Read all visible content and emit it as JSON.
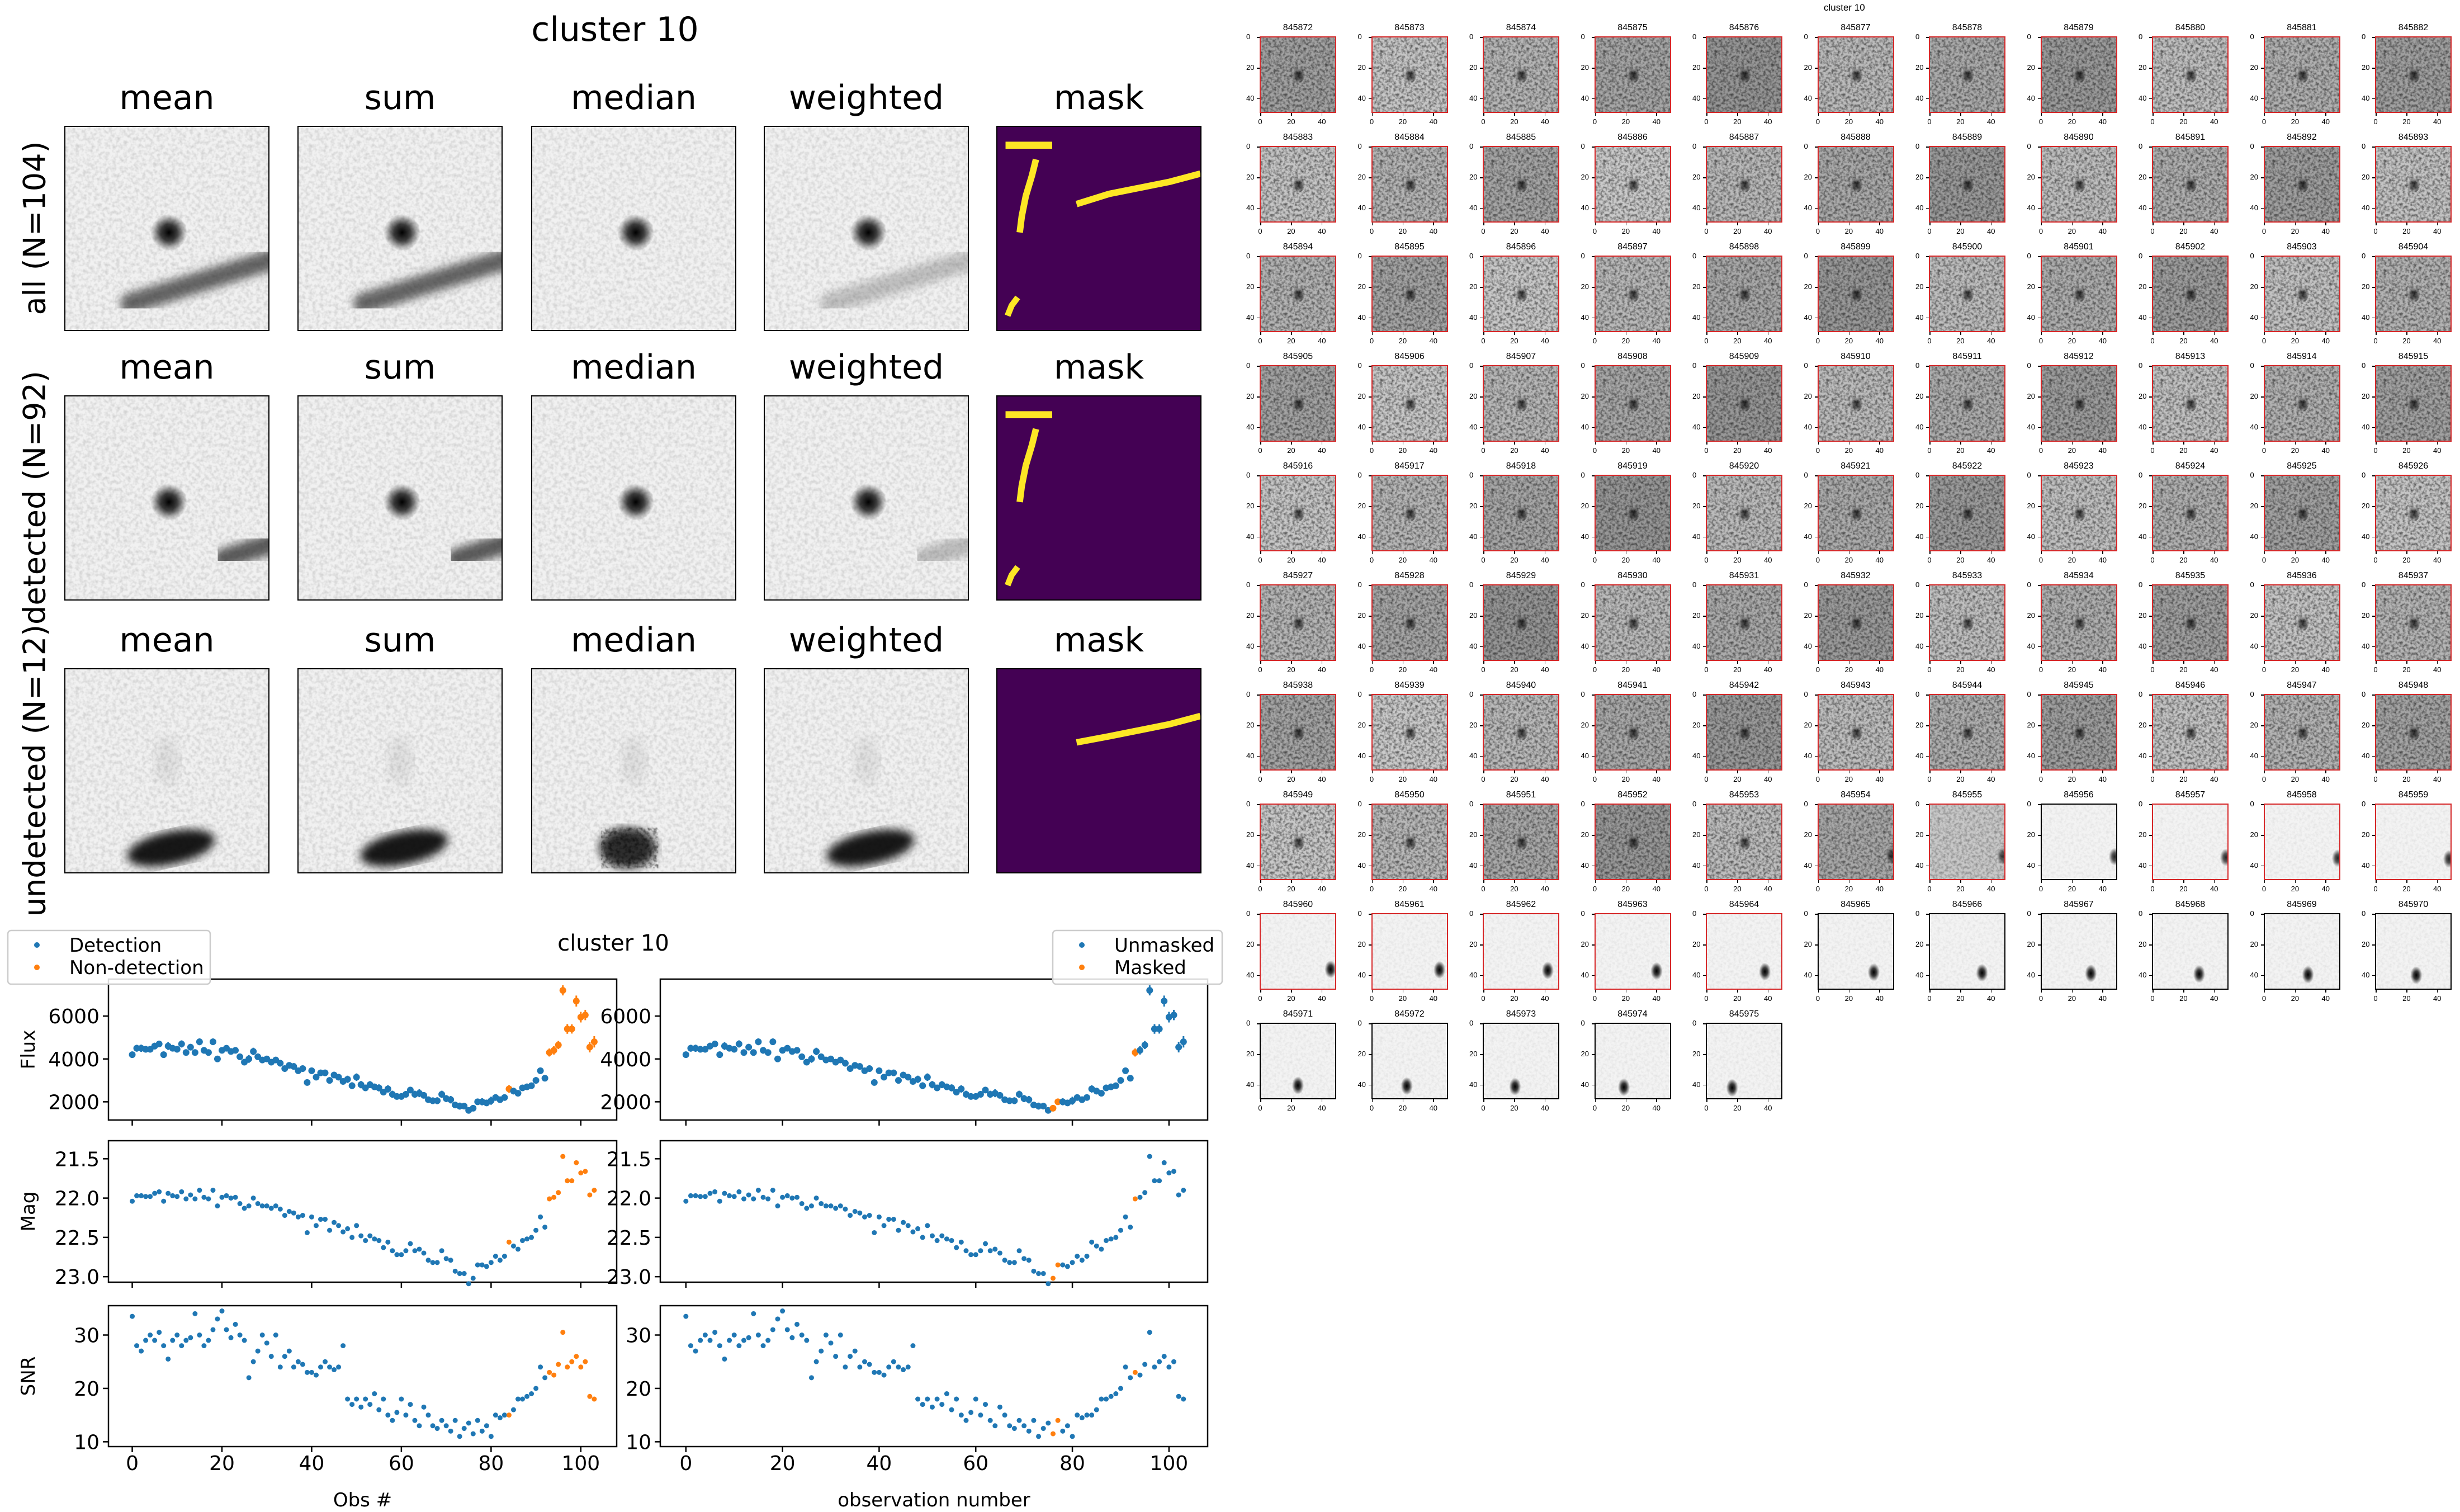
{
  "figure": {
    "stack_title": "cluster 10",
    "lightcurve_title": "cluster 10",
    "grid_title": "cluster 10"
  },
  "stack": {
    "columns": [
      "mean",
      "sum",
      "median",
      "weighted",
      "mask"
    ],
    "rows": [
      "all (N=104)",
      "detected (N=92)",
      "undetected (N=12)"
    ]
  },
  "chart_data": {
    "type": "scatter",
    "title": "cluster 10",
    "x": [
      0,
      1,
      2,
      3,
      4,
      5,
      6,
      7,
      8,
      9,
      10,
      11,
      12,
      13,
      14,
      15,
      16,
      17,
      18,
      19,
      20,
      21,
      22,
      23,
      24,
      25,
      26,
      27,
      28,
      29,
      30,
      31,
      32,
      33,
      34,
      35,
      36,
      37,
      38,
      39,
      40,
      41,
      42,
      43,
      44,
      45,
      46,
      47,
      48,
      49,
      50,
      51,
      52,
      53,
      54,
      55,
      56,
      57,
      58,
      59,
      60,
      61,
      62,
      63,
      64,
      65,
      66,
      67,
      68,
      69,
      70,
      71,
      72,
      73,
      74,
      75,
      76,
      77,
      78,
      79,
      80,
      81,
      82,
      83,
      84,
      85,
      86,
      87,
      88,
      89,
      90,
      91,
      92,
      93,
      94,
      95,
      96,
      97,
      98,
      99,
      100,
      101,
      102,
      103
    ],
    "flux": [
      4200,
      4500,
      4500,
      4450,
      4450,
      4600,
      4700,
      4200,
      4600,
      4500,
      4450,
      4700,
      4300,
      4550,
      4300,
      4800,
      4400,
      4300,
      4800,
      4000,
      4400,
      4500,
      4350,
      4400,
      4100,
      3850,
      4000,
      4350,
      4100,
      3950,
      4000,
      3850,
      3950,
      3800,
      3550,
      3700,
      3650,
      3450,
      3550,
      2900,
      3450,
      3150,
      3350,
      3350,
      3000,
      3250,
      3150,
      2950,
      3050,
      2750,
      3150,
      2800,
      2650,
      2800,
      2700,
      2650,
      2450,
      2600,
      2350,
      2250,
      2250,
      2350,
      2550,
      2350,
      2400,
      2300,
      2100,
      2050,
      2050,
      2350,
      2150,
      2100,
      1850,
      1800,
      1800,
      1600,
      1700,
      2000,
      2000,
      1950,
      2050,
      2200,
      2100,
      2200,
      2600,
      2500,
      2400,
      2650,
      2700,
      2750,
      3000,
      3450,
      3100,
      4300,
      4400,
      4650,
      7200,
      5400,
      5400,
      6700,
      5950,
      6050,
      4550,
      4800
    ],
    "mag": [
      22.04,
      21.97,
      21.97,
      21.98,
      21.98,
      21.94,
      21.92,
      22.04,
      21.94,
      21.97,
      21.98,
      21.92,
      22.01,
      21.96,
      22.01,
      21.9,
      21.99,
      22.01,
      21.9,
      22.1,
      21.99,
      21.97,
      22.0,
      21.99,
      22.07,
      22.13,
      22.1,
      22.0,
      22.07,
      22.1,
      22.1,
      22.13,
      22.1,
      22.14,
      22.22,
      22.17,
      22.19,
      22.24,
      22.22,
      22.44,
      22.24,
      22.35,
      22.27,
      22.27,
      22.41,
      22.31,
      22.35,
      22.43,
      22.39,
      22.5,
      22.35,
      22.48,
      22.54,
      22.48,
      22.52,
      22.54,
      22.63,
      22.56,
      22.67,
      22.72,
      22.72,
      22.67,
      22.58,
      22.67,
      22.65,
      22.7,
      22.79,
      22.82,
      22.82,
      22.67,
      22.77,
      22.79,
      22.93,
      22.96,
      22.96,
      23.09,
      23.02,
      22.85,
      22.85,
      22.87,
      22.82,
      22.74,
      22.79,
      22.74,
      22.56,
      22.61,
      22.65,
      22.54,
      22.52,
      22.5,
      22.41,
      22.24,
      22.37,
      22.01,
      21.99,
      21.93,
      21.47,
      21.78,
      21.78,
      21.55,
      21.68,
      21.66,
      21.96,
      21.9
    ],
    "snr": [
      33.5,
      28,
      27,
      29,
      30,
      29,
      30.5,
      28,
      25.5,
      29,
      30,
      28,
      29,
      29.5,
      34,
      30,
      28,
      29,
      31,
      33,
      34.5,
      31,
      29.5,
      32,
      30,
      29,
      22,
      25,
      27,
      30,
      28.5,
      26,
      30,
      24,
      26,
      27,
      24,
      25,
      24.5,
      23,
      23,
      22.5,
      24,
      25,
      24,
      23.5,
      24,
      28,
      18,
      17,
      18,
      16.5,
      18,
      17,
      19,
      16,
      18,
      15,
      14,
      15.5,
      18,
      15,
      17,
      14,
      13,
      16.5,
      15,
      13,
      12.5,
      14,
      13,
      12,
      14,
      11,
      12.5,
      13.5,
      11.5,
      14,
      12,
      13,
      11,
      15,
      14.5,
      15,
      15,
      16,
      18,
      18,
      18.5,
      19,
      20,
      24,
      22,
      23,
      22.5,
      24.5,
      30.5,
      24,
      25,
      26,
      24,
      25,
      18.5,
      18
    ],
    "nondetection_indices": [
      84,
      93,
      94,
      95,
      96,
      97,
      98,
      99,
      100,
      101,
      102,
      103
    ],
    "masked_indices": [
      76,
      77,
      93
    ],
    "panels": [
      {
        "key": "flux",
        "ylabel": "Flux",
        "ylim": [
          1150,
          7725
        ],
        "yticks": [
          2000,
          4000,
          6000
        ],
        "inverted": false
      },
      {
        "key": "mag",
        "ylabel": "Mag",
        "ylim": [
          21.27,
          23.07
        ],
        "yticks": [
          21.5,
          22.0,
          22.5,
          23.0
        ],
        "ytick_labels": [
          "21.5",
          "22.0",
          "22.5",
          "23.0"
        ],
        "inverted": true
      },
      {
        "key": "snr",
        "ylabel": "SNR",
        "ylim": [
          9.1,
          35.5
        ],
        "yticks": [
          10,
          20,
          30
        ],
        "inverted": false
      }
    ],
    "xlim": [
      -5.3,
      108
    ],
    "xticks": [
      0,
      20,
      40,
      60,
      80,
      100
    ],
    "xlabel_left": "Obs #",
    "xlabel_right": "observation number",
    "legend_left": [
      "Detection",
      "Non-detection"
    ],
    "legend_right": [
      "Unmasked",
      "Masked"
    ],
    "legend_placement": "top-left / top-right",
    "colors": {
      "primary": "#1f77b4",
      "secondary": "#ff7f0e"
    }
  },
  "cutouts": {
    "first_id": 845872,
    "ids": [
      "845872",
      "845873",
      "845874",
      "845875",
      "845876",
      "845877",
      "845878",
      "845879",
      "845880",
      "845881",
      "845882",
      "845883",
      "845884",
      "845885",
      "845886",
      "845887",
      "845888",
      "845889",
      "845890",
      "845891",
      "845892",
      "845893",
      "845894",
      "845895",
      "845896",
      "845897",
      "845898",
      "845899",
      "845900",
      "845901",
      "845902",
      "845903",
      "845904",
      "845905",
      "845906",
      "845907",
      "845908",
      "845909",
      "845910",
      "845911",
      "845912",
      "845913",
      "845914",
      "845915",
      "845916",
      "845917",
      "845918",
      "845919",
      "845920",
      "845921",
      "845922",
      "845923",
      "845924",
      "845925",
      "845926",
      "845927",
      "845928",
      "845929",
      "845930",
      "845931",
      "845932",
      "845933",
      "845934",
      "845935",
      "845936",
      "845937",
      "845938",
      "845939",
      "845940",
      "845941",
      "845942",
      "845943",
      "845944",
      "845945",
      "845946",
      "845947",
      "845948",
      "845949",
      "845950",
      "845951",
      "845952",
      "845953",
      "845954",
      "845955",
      "845956",
      "845957",
      "845958",
      "845959",
      "845960",
      "845961",
      "845962",
      "845963",
      "845964",
      "845965",
      "845966",
      "845967",
      "845968",
      "845969",
      "845970",
      "845971",
      "845972",
      "845973",
      "845974",
      "845975"
    ],
    "tick_labels": [
      "0",
      "20",
      "40"
    ],
    "detected_border_color": "#d62728",
    "undetected_border_color": "#000000"
  }
}
